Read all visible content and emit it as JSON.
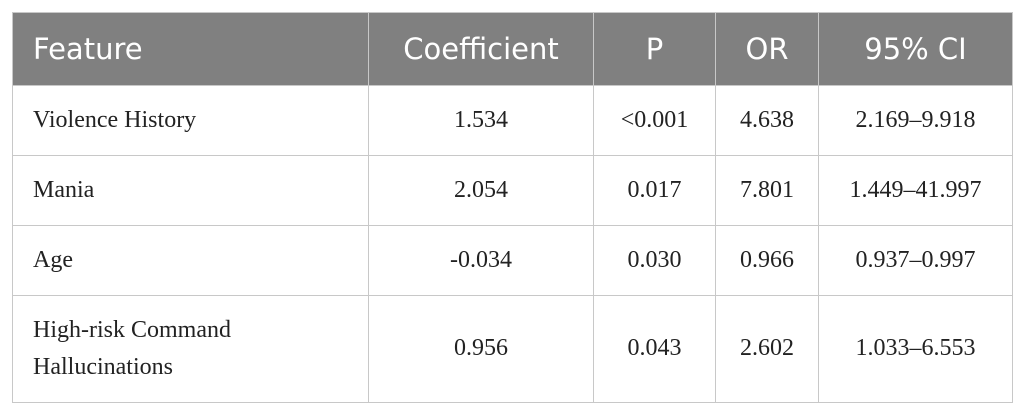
{
  "table": {
    "header": [
      "Feature",
      "Coefficient",
      "P",
      "OR",
      "95% CI"
    ],
    "rows": [
      [
        "Violence History",
        "1.534",
        "<0.001",
        "4.638",
        "2.169–9.918"
      ],
      [
        "Mania",
        "2.054",
        "0.017",
        "7.801",
        "1.449–41.997"
      ],
      [
        "Age",
        "-0.034",
        "0.030",
        "0.966",
        "0.937–0.997"
      ],
      [
        "High-risk Command Hallucinations",
        "0.956",
        "0.043",
        "2.602",
        "1.033–6.553"
      ]
    ]
  }
}
